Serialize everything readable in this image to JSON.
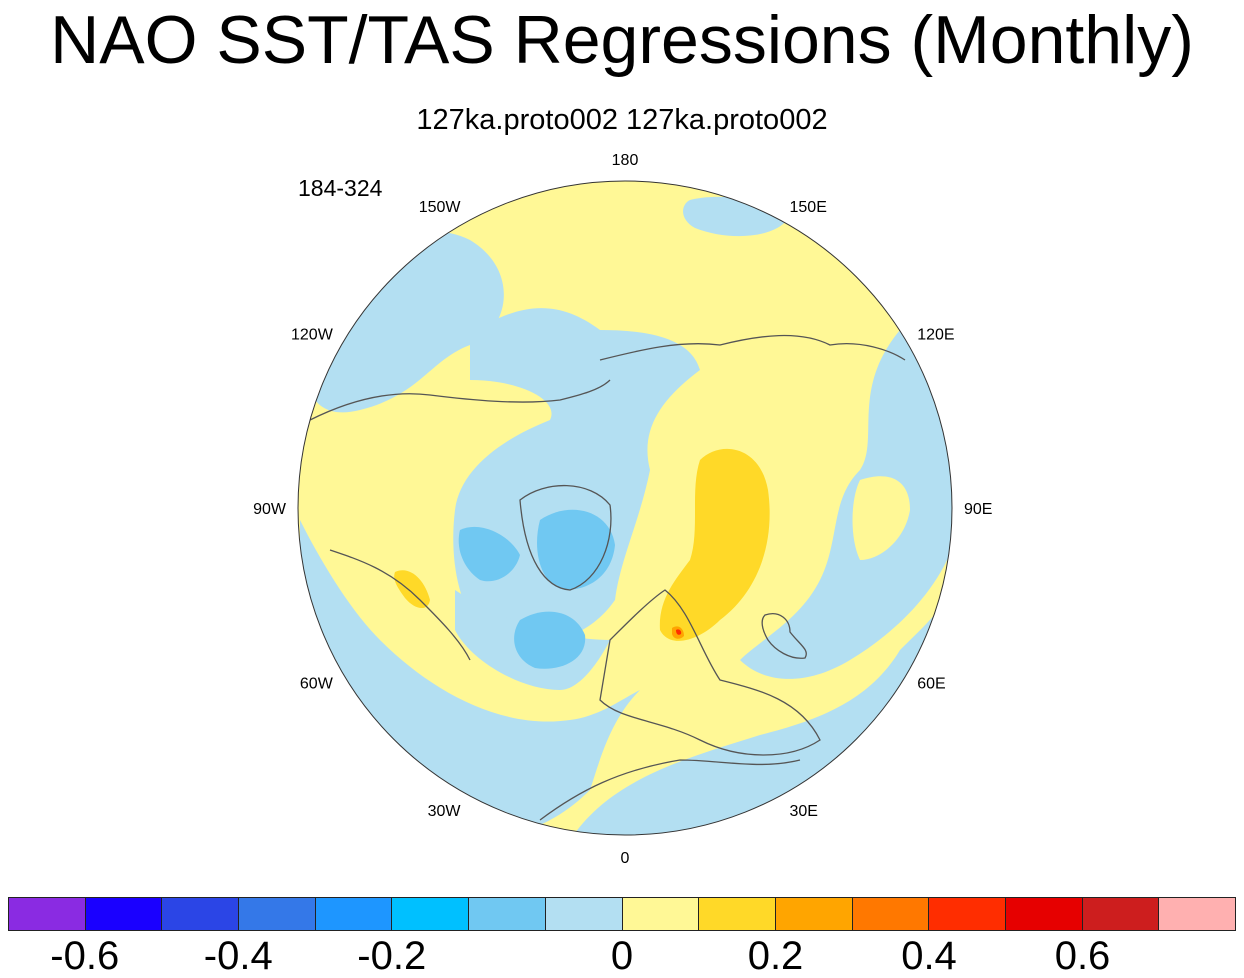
{
  "title": "NAO SST/TAS Regressions (Monthly)",
  "subtitle": "127ka.proto002  127ka.proto002",
  "years": "184-324",
  "map": {
    "projection": "north-polar-stereographic",
    "longitude_labels": [
      {
        "lon": 180,
        "text": "180"
      },
      {
        "lon": 150,
        "text": "150E"
      },
      {
        "lon": -150,
        "text": "150W"
      },
      {
        "lon": 120,
        "text": "120E"
      },
      {
        "lon": -120,
        "text": "120W"
      },
      {
        "lon": 90,
        "text": "90E"
      },
      {
        "lon": -90,
        "text": "90W"
      },
      {
        "lon": 60,
        "text": "60E"
      },
      {
        "lon": -60,
        "text": "60W"
      },
      {
        "lon": 30,
        "text": "30E"
      },
      {
        "lon": -30,
        "text": "30W"
      },
      {
        "lon": 0,
        "text": "0"
      }
    ]
  },
  "colorbar": {
    "colors": [
      "#8a2be2",
      "#1a00ff",
      "#2b45e6",
      "#3478e8",
      "#1e96ff",
      "#00c0ff",
      "#70c8f2",
      "#b3dff2",
      "#fff896",
      "#ffd928",
      "#ffa500",
      "#ff7800",
      "#ff2d00",
      "#e60000",
      "#cd1e1e",
      "#ffb0b0"
    ],
    "tick_labels": [
      "-0.6",
      "-0.4",
      "-0.2",
      "0",
      "0.2",
      "0.4",
      "0.6"
    ],
    "tick_boundaries": [
      1,
      3,
      5,
      8,
      10,
      12,
      14
    ]
  }
}
